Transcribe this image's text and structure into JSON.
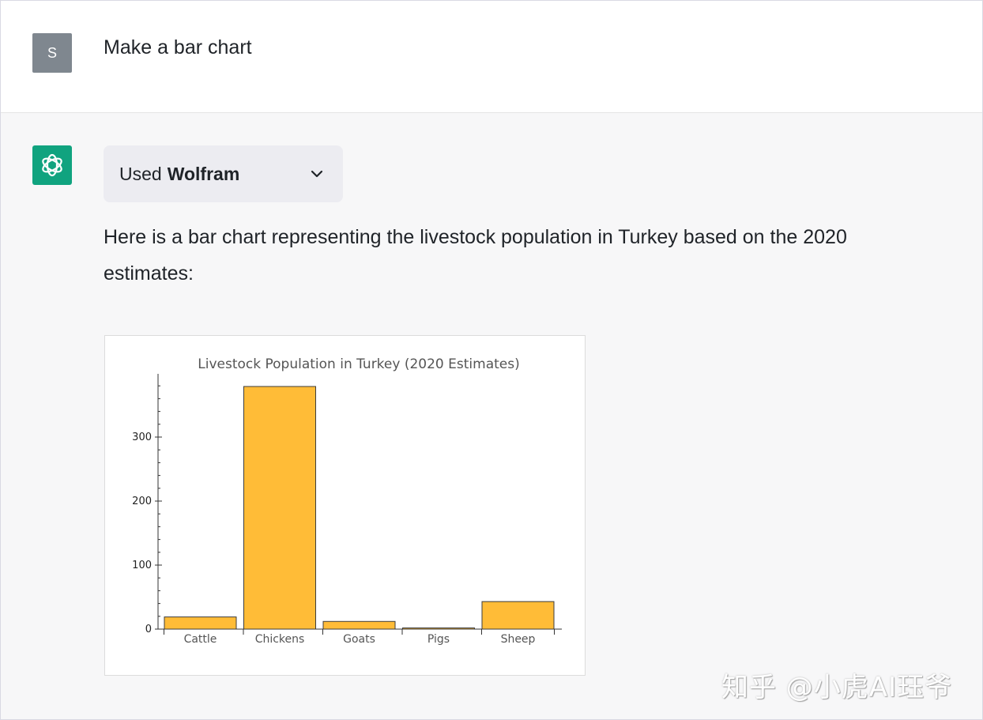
{
  "user_message": {
    "avatar_letter": "S",
    "text": "Make a bar chart"
  },
  "assistant_message": {
    "plugin": {
      "used_label": "Used",
      "plugin_name": "Wolfram"
    },
    "text": "Here is a bar chart representing the livestock population in Turkey based on the 2020 estimates:"
  },
  "chart_data": {
    "type": "bar",
    "title": "Livestock Population in Turkey (2020 Estimates)",
    "xlabel": "",
    "ylabel": "",
    "categories": [
      "Cattle",
      "Chickens",
      "Goats",
      "Pigs",
      "Sheep"
    ],
    "values": [
      19,
      379,
      12,
      0.002,
      43
    ],
    "ylim": [
      0,
      400
    ],
    "yticks": [
      0,
      100,
      200,
      300
    ],
    "bar_color": "#ffbc37",
    "bar_edge_color": "#3c3c3c",
    "grid": false
  },
  "watermark": "知乎 @小虎AI珏爷",
  "colors": {
    "assistant_avatar": "#10a37f",
    "user_avatar": "#7f878f",
    "assistant_background": "#f7f7f8",
    "plugin_pill": "#ececf1"
  }
}
